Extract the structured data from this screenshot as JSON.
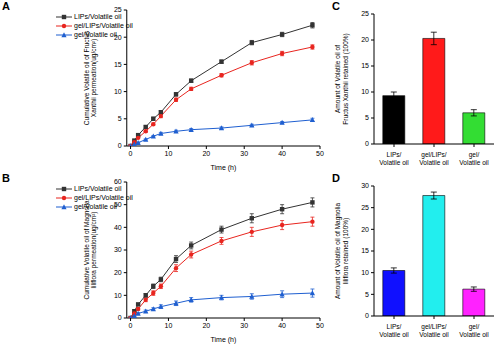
{
  "chart_data": [
    {
      "type": "line",
      "title": "A",
      "x_label": "Time (h)",
      "y_label": "Cumulative Volatile oil of Fructus Xanthii permeation(ug/cm²)",
      "x": [
        0,
        1,
        2,
        4,
        6,
        8,
        12,
        16,
        24,
        32,
        40,
        48
      ],
      "series": [
        {
          "name": "LIPs/Volatile oil",
          "color": "#333333",
          "marker": "square",
          "values": [
            0,
            1.0,
            2.0,
            3.5,
            5.0,
            6.2,
            9.5,
            12.0,
            15.5,
            19.0,
            20.5,
            22.2
          ],
          "errors": [
            0,
            0.1,
            0.2,
            0.2,
            0.3,
            0.3,
            0.3,
            0.3,
            0.3,
            0.4,
            0.4,
            0.5
          ]
        },
        {
          "name": "gel/LIPs/Volatile oil",
          "color": "#e8251f",
          "marker": "circle",
          "values": [
            0,
            0.7,
            1.5,
            2.7,
            4.0,
            5.5,
            8.5,
            10.5,
            13.0,
            15.3,
            17.0,
            18.2
          ],
          "errors": [
            0,
            0.1,
            0.1,
            0.2,
            0.2,
            0.3,
            0.3,
            0.3,
            0.3,
            0.4,
            0.4,
            0.4
          ]
        },
        {
          "name": "gel/Volatile oil",
          "color": "#1f5fd0",
          "marker": "triangle",
          "values": [
            0,
            0.3,
            0.6,
            1.2,
            1.8,
            2.3,
            2.7,
            3.0,
            3.3,
            3.8,
            4.3,
            4.8
          ],
          "errors": [
            0,
            0.1,
            0.1,
            0.1,
            0.1,
            0.2,
            0.2,
            0.2,
            0.2,
            0.2,
            0.2,
            0.3
          ]
        }
      ],
      "xlim": [
        -1,
        50
      ],
      "xticks": [
        0,
        10,
        20,
        30,
        40,
        50
      ],
      "ylim": [
        0,
        25
      ],
      "yticks": [
        0,
        5,
        10,
        15,
        20,
        25
      ],
      "legend": "upper left"
    },
    {
      "type": "line",
      "title": "B",
      "x_label": "Time (h)",
      "y_label": "Cumulative Volatile oil of Magnolia liliflora permeation(ug/cm²)",
      "x": [
        0,
        1,
        2,
        4,
        6,
        8,
        12,
        16,
        24,
        32,
        40,
        48
      ],
      "series": [
        {
          "name": "LIPs/Volatile oil",
          "color": "#333333",
          "marker": "square",
          "values": [
            0,
            3,
            6,
            10,
            14,
            17,
            26,
            32,
            39,
            44,
            48,
            51
          ],
          "errors": [
            0,
            0.5,
            0.5,
            0.8,
            1.0,
            1.0,
            1.5,
            1.5,
            1.5,
            2.0,
            2.0,
            2.0
          ]
        },
        {
          "name": "gel/LIPs/Volatile oil",
          "color": "#e8251f",
          "marker": "circle",
          "values": [
            0,
            2,
            4,
            8,
            11,
            14,
            22,
            28,
            34,
            38,
            41,
            42.5
          ],
          "errors": [
            0,
            0.5,
            0.5,
            0.8,
            1.0,
            1.0,
            1.5,
            1.5,
            1.5,
            2.0,
            2.0,
            2.0
          ]
        },
        {
          "name": "gel/Volatile oil",
          "color": "#1f5fd0",
          "marker": "triangle",
          "values": [
            0,
            1,
            2,
            3,
            4,
            5,
            6.5,
            8,
            9,
            9.5,
            10.5,
            11
          ],
          "errors": [
            0,
            0.3,
            0.3,
            0.5,
            0.5,
            0.8,
            1.0,
            1.0,
            1.0,
            1.2,
            1.5,
            1.8
          ]
        }
      ],
      "xlim": [
        -1,
        50
      ],
      "xticks": [
        0,
        10,
        20,
        30,
        40,
        50
      ],
      "ylim": [
        0,
        60
      ],
      "yticks": [
        0,
        10,
        20,
        30,
        40,
        50,
        60
      ],
      "legend": "upper left"
    },
    {
      "type": "bar",
      "title": "C",
      "y_label": "Amount of Volatile oil of Fructus Xanthii retained (100%)",
      "categories": [
        "LIPs/Volatile oil",
        "gel/LIPs/Volatile oil",
        "gel/Volatile oil"
      ],
      "values": [
        9.3,
        20.3,
        6.0
      ],
      "errors": [
        0.7,
        1.2,
        0.6
      ],
      "colors": [
        "#000000",
        "#ff1a1a",
        "#33dd33"
      ],
      "ylim": [
        0,
        25
      ],
      "yticks": [
        0,
        5,
        10,
        15,
        20,
        25
      ]
    },
    {
      "type": "bar",
      "title": "D",
      "y_label": "Amount of Volatile oil of Magnolia liliflora retained (100%)",
      "categories": [
        "LIPs/Volatile oil",
        "gel/LIPs/Volatile oil",
        "gel/Volatile oil"
      ],
      "values": [
        10.5,
        27.8,
        6.2
      ],
      "errors": [
        0.6,
        0.8,
        0.5
      ],
      "colors": [
        "#1010ff",
        "#22eeee",
        "#ff22ff"
      ],
      "ylim": [
        0,
        30
      ],
      "yticks": [
        0,
        5,
        10,
        15,
        20,
        25,
        30
      ]
    }
  ]
}
